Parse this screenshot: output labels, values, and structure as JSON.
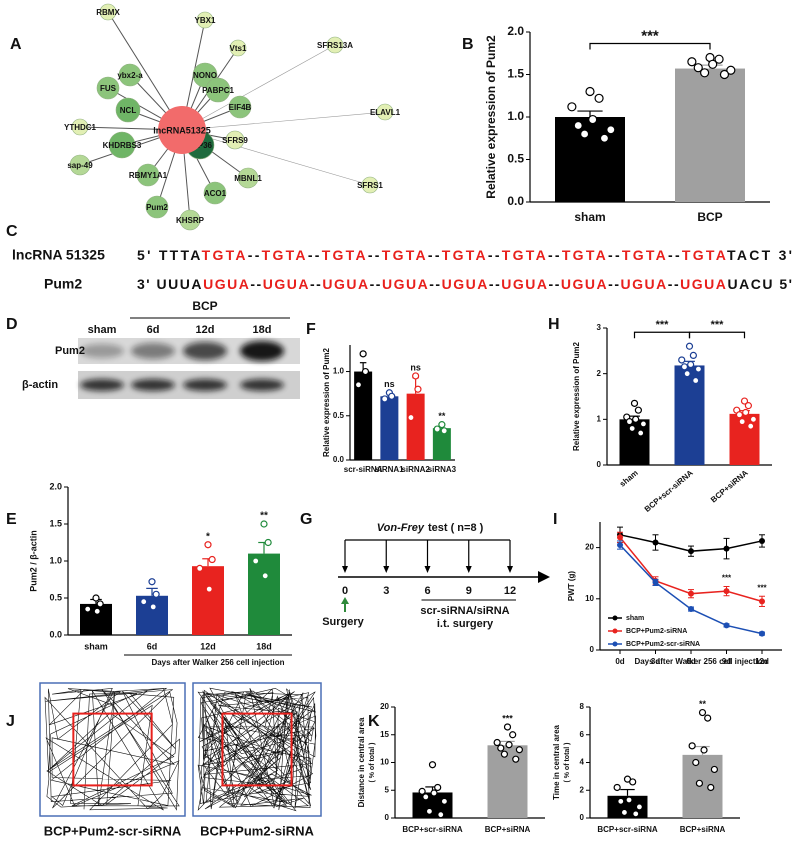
{
  "panel_labels": [
    "A",
    "B",
    "C",
    "D",
    "E",
    "F",
    "G",
    "H",
    "I",
    "J",
    "K"
  ],
  "network": {
    "center": "lncRNA51325",
    "center_color": "#f26b6b",
    "nodes": [
      {
        "label": "RBMX",
        "color": "#e2efb4"
      },
      {
        "label": "YBX1",
        "color": "#e2efb4"
      },
      {
        "label": "Vts1",
        "color": "#e2efb4"
      },
      {
        "label": "SFRS13A",
        "color": "#e2efb4"
      },
      {
        "label": "ybx2-a",
        "color": "#8cc47b"
      },
      {
        "label": "NONO",
        "color": "#8cc47b"
      },
      {
        "label": "PABPC1",
        "color": "#8cc47b"
      },
      {
        "label": "FUS",
        "color": "#8cc47b"
      },
      {
        "label": "NCL",
        "color": "#6fb566"
      },
      {
        "label": "EIF4B",
        "color": "#8cc47b"
      },
      {
        "label": "ELAVL1",
        "color": "#e2efb4"
      },
      {
        "label": "YTHDC1",
        "color": "#e2efb4"
      },
      {
        "label": "KHDRBS3",
        "color": "#6fb566"
      },
      {
        "label": "ZFP36",
        "color": "#1f6b3d"
      },
      {
        "label": "SFRS9",
        "color": "#e2efb4"
      },
      {
        "label": "sap-49",
        "color": "#b4d896"
      },
      {
        "label": "RBMY1A1",
        "color": "#8cc47b"
      },
      {
        "label": "MBNL1",
        "color": "#b4d896"
      },
      {
        "label": "ACO1",
        "color": "#8cc47b"
      },
      {
        "label": "SFRS1",
        "color": "#e2efb4"
      },
      {
        "label": "Pum2",
        "color": "#8cc47b"
      },
      {
        "label": "KHSRP",
        "color": "#b4d896"
      }
    ]
  },
  "sequences": [
    {
      "name": "lncRNA 51325",
      "start": "5' TTTA",
      "motifs": [
        "TGTA",
        "TGTA",
        "TGTA",
        "TGTA",
        "TGTA",
        "TGTA",
        "TGTA",
        "TGTA",
        "TGTA"
      ],
      "separator": "--",
      "end": "TACT 3'"
    },
    {
      "name": "Pum2",
      "start": "3' UUUA",
      "motifs": [
        "UGUA",
        "UGUA",
        "UGUA",
        "UGUA",
        "UGUA",
        "UGUA",
        "UGUA",
        "UGUA",
        "UGUA"
      ],
      "separator": "--",
      "end": "UACU 5'"
    }
  ],
  "motif_color": "#e8201c",
  "blot": {
    "group": "BCP",
    "lanes": [
      "sham",
      "6d",
      "12d",
      "18d"
    ],
    "rows": [
      "Pum2",
      "β-actin"
    ]
  },
  "timeline": {
    "method": "Von-Frey",
    "title": "test ( n=8 )",
    "days": [
      0,
      3,
      6,
      9,
      12
    ],
    "start_label": "Surgery",
    "treatment": [
      "scr-siRNA/siRNA",
      "i.t. surgery"
    ]
  },
  "open_field": {
    "labels": [
      "BCP+Pum2-scr-siRNA",
      "BCP+Pum2-siRNA"
    ],
    "frame_color": "#4a6fb5",
    "center_color": "#e8201c"
  },
  "chart_data": [
    {
      "type": "bar",
      "ylabel": "Relative expression of Pum2",
      "categories": [
        "sham",
        "BCP"
      ],
      "values": [
        1.0,
        1.57
      ],
      "errors": [
        0.07,
        0.04
      ],
      "colors": [
        "#000000",
        "#a0a0a0"
      ],
      "point_colors": [
        "#000000",
        "#000000"
      ],
      "points": [
        [
          1.3,
          1.22,
          1.12,
          0.97,
          0.9,
          0.85,
          0.8,
          0.75
        ],
        [
          1.7,
          1.68,
          1.65,
          1.62,
          1.58,
          1.55,
          1.52,
          1.5
        ]
      ],
      "comparisons": [
        {
          "categories": [
            "sham",
            "BCP"
          ],
          "label": "***"
        }
      ],
      "ylim": [
        0,
        2
      ],
      "yticks": [
        {
          "value": 0,
          "label": "0.0"
        },
        0.5,
        {
          "value": 1,
          "label": "1.0"
        },
        1.5,
        {
          "value": 2,
          "label": "2.0"
        }
      ]
    },
    {
      "type": "bar",
      "ylabel": "Relative expression of Pum2",
      "categories": [
        "scr-siRNA",
        "siRNA1",
        "siRNA2",
        "siRNA3"
      ],
      "values": [
        1.0,
        0.72,
        0.75,
        0.36
      ],
      "errors": [
        0.1,
        0.04,
        0.18,
        0.04
      ],
      "colors": [
        "#000000",
        "#1c3f94",
        "#e8231f",
        "#1f8a3b"
      ],
      "point_colors": [
        "#000000",
        "#1c3f94",
        "#e8231f",
        "#1f8a3b"
      ],
      "points": [
        [
          1.2,
          1.0,
          0.85
        ],
        [
          0.76,
          0.72,
          0.69
        ],
        [
          0.95,
          0.8,
          0.48
        ],
        [
          0.4,
          0.33,
          0.35
        ]
      ],
      "annotations": [
        null,
        "ns",
        "ns",
        "**"
      ],
      "ylim": [
        0,
        1.3
      ],
      "yticks": [
        {
          "value": 0,
          "label": "0.0"
        },
        0.5,
        {
          "value": 1,
          "label": "1.0"
        }
      ]
    },
    {
      "type": "bar",
      "ylabel": "Relative expression of Pum2",
      "categories": [
        "sham",
        "BCP+scr-siRNA",
        "BCP+siRNA"
      ],
      "values": [
        1.0,
        2.18,
        1.12
      ],
      "errors": [
        0.07,
        0.09,
        0.07
      ],
      "colors": [
        "#000000",
        "#1c3f94",
        "#e8231f"
      ],
      "point_colors": [
        "#000000",
        "#1c3f94",
        "#e8231f"
      ],
      "points": [
        [
          1.35,
          1.2,
          1.05,
          1.0,
          0.95,
          0.9,
          0.8,
          0.7
        ],
        [
          2.6,
          2.4,
          2.3,
          2.2,
          2.15,
          2.1,
          2.0,
          1.85
        ],
        [
          1.4,
          1.3,
          1.2,
          1.15,
          1.1,
          1.0,
          0.95,
          0.85
        ]
      ],
      "comparisons": [
        {
          "categories": [
            "sham",
            "BCP+scr-siRNA"
          ],
          "label": "***"
        },
        {
          "categories": [
            "BCP+scr-siRNA",
            "BCP+siRNA"
          ],
          "label": "***"
        }
      ],
      "ylim": [
        0,
        3
      ],
      "yticks": [
        0,
        1,
        2,
        3
      ]
    },
    {
      "type": "bar",
      "ylabel": "Pum2 / β-actin",
      "xlabel": "Days after Walker 256 cell injection",
      "categories": [
        "sham",
        "6d",
        "12d",
        "18d"
      ],
      "values": [
        0.42,
        0.53,
        0.93,
        1.1
      ],
      "errors": [
        0.06,
        0.1,
        0.1,
        0.15
      ],
      "colors": [
        "#000000",
        "#1c3f94",
        "#e8231f",
        "#1f8a3b"
      ],
      "point_colors": [
        "#000000",
        "#1c3f94",
        "#e8231f",
        "#1f8a3b"
      ],
      "points": [
        [
          0.5,
          0.42,
          0.35,
          0.32
        ],
        [
          0.72,
          0.55,
          0.45,
          0.38
        ],
        [
          1.22,
          1.02,
          0.9,
          0.62
        ],
        [
          1.5,
          1.25,
          1.0,
          0.8
        ]
      ],
      "annotations": [
        null,
        null,
        "*",
        "**"
      ],
      "ylim": [
        0,
        2
      ],
      "yticks": [
        {
          "value": 0,
          "label": "0.0"
        },
        0.5,
        {
          "value": 1,
          "label": "1.0"
        },
        1.5,
        {
          "value": 2,
          "label": "2.0"
        }
      ]
    },
    {
      "type": "line",
      "ylabel": "PWT (g)",
      "xlabel": "Days after Walker 256 cell injection",
      "categories": [
        "0d",
        "3d",
        "6d",
        "9d",
        "12d"
      ],
      "series": [
        {
          "name": "sham",
          "color": "#000000",
          "values": [
            22.5,
            21,
            19.3,
            19.8,
            21.3
          ],
          "errors": [
            1.5,
            1.5,
            1.0,
            2.0,
            1.2
          ]
        },
        {
          "name": "BCP+Pum2-siRNA",
          "color": "#e8231f",
          "values": [
            22,
            13.5,
            11,
            11.5,
            9.5
          ],
          "errors": [
            1.0,
            0.8,
            0.8,
            0.9,
            1.0
          ]
        },
        {
          "name": "BCP+Pum2-scr-siRNA",
          "color": "#1c4fb4",
          "values": [
            20.5,
            13.2,
            8,
            4.8,
            3.2
          ],
          "errors": [
            0.8,
            0.6,
            0.4,
            0.3,
            0.3
          ]
        }
      ],
      "annotations": [
        null,
        null,
        null,
        "***",
        "***"
      ],
      "legend": "lower left",
      "ylim": [
        0,
        25
      ],
      "yticks": [
        0,
        10,
        20
      ]
    },
    {
      "type": "bar",
      "ylabel": [
        "Distance in central area",
        "( % of total )"
      ],
      "categories": [
        "BCP+scr-siRNA",
        "BCP+siRNA"
      ],
      "values": [
        4.6,
        13.1
      ],
      "errors": [
        1.0,
        0.7
      ],
      "colors": [
        "#000000",
        "#a0a0a0"
      ],
      "point_colors": [
        "#000000",
        "#000000"
      ],
      "points": [
        [
          9.6,
          5.5,
          4.8,
          4.5,
          3.8,
          3.0,
          1.2,
          0.6
        ],
        [
          16.4,
          15.0,
          13.6,
          13.2,
          12.6,
          12.3,
          11.5,
          10.6
        ]
      ],
      "annotations": [
        null,
        "***"
      ],
      "ylim": [
        0,
        20
      ],
      "yticks": [
        0,
        5,
        10,
        15,
        20
      ]
    },
    {
      "type": "bar",
      "ylabel": [
        "Time in central area",
        "( % of total )"
      ],
      "categories": [
        "BCP+scr-siRNA",
        "BCP+siRNA"
      ],
      "values": [
        1.6,
        4.55
      ],
      "errors": [
        0.45,
        0.6
      ],
      "colors": [
        "#000000",
        "#a0a0a0"
      ],
      "point_colors": [
        "#000000",
        "#000000"
      ],
      "points": [
        [
          2.8,
          2.6,
          2.2,
          1.3,
          1.2,
          0.8,
          0.4,
          0.3
        ],
        [
          7.6,
          7.2,
          5.2,
          4.9,
          4.0,
          3.5,
          2.5,
          2.2
        ]
      ],
      "annotations": [
        null,
        "**"
      ],
      "ylim": [
        0,
        8
      ],
      "yticks": [
        0,
        2,
        4,
        6,
        8
      ]
    }
  ]
}
